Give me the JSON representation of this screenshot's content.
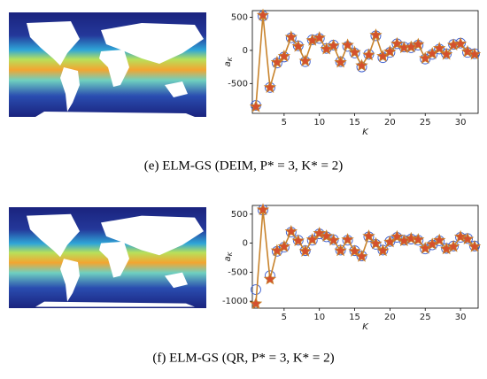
{
  "chart_data": [
    {
      "type": "line",
      "caption": "(e) ELM-GS (DEIM, P* = 3, K* = 2)",
      "xlabel": "K",
      "ylabel": "a",
      "ylabel_sub": "K",
      "x": [
        1,
        2,
        3,
        4,
        5,
        6,
        7,
        8,
        9,
        10,
        11,
        12,
        13,
        14,
        15,
        16,
        17,
        18,
        19,
        20,
        21,
        22,
        23,
        24,
        25,
        26,
        27,
        28,
        29,
        30,
        31,
        32
      ],
      "xlim": [
        0.5,
        32.5
      ],
      "xticks": [
        5,
        10,
        15,
        20,
        25,
        30
      ],
      "ylim": [
        -950,
        600
      ],
      "yticks": [
        500,
        0,
        -500
      ],
      "series": [
        {
          "color": "#3d5fd0",
          "marker": "circle",
          "line": false,
          "values": [
            -830,
            520,
            -560,
            -190,
            -100,
            190,
            70,
            -170,
            160,
            180,
            30,
            80,
            -170,
            60,
            -40,
            -250,
            -60,
            220,
            -110,
            -30,
            100,
            50,
            40,
            80,
            -130,
            -60,
            20,
            -50,
            90,
            110,
            -30,
            -50
          ]
        },
        {
          "color": "#c8832c",
          "marker": "star",
          "line": true,
          "values": [
            -850,
            530,
            -560,
            -180,
            -90,
            200,
            60,
            -160,
            150,
            190,
            20,
            70,
            -180,
            80,
            -30,
            -230,
            -70,
            230,
            -90,
            -20,
            100,
            40,
            50,
            90,
            -120,
            -50,
            30,
            -60,
            80,
            100,
            -20,
            -60
          ]
        }
      ]
    },
    {
      "type": "line",
      "caption": "(f) ELM-GS (QR, P* = 3, K* = 2)",
      "xlabel": "K",
      "ylabel": "a",
      "ylabel_sub": "K",
      "x": [
        1,
        2,
        3,
        4,
        5,
        6,
        7,
        8,
        9,
        10,
        11,
        12,
        13,
        14,
        15,
        16,
        17,
        18,
        19,
        20,
        21,
        22,
        23,
        24,
        25,
        26,
        27,
        28,
        29,
        30,
        31,
        32
      ],
      "xlim": [
        0.5,
        32.5
      ],
      "xticks": [
        5,
        10,
        15,
        20,
        25,
        30
      ],
      "ylim": [
        -1120,
        650
      ],
      "yticks": [
        500,
        0,
        -500,
        -1000
      ],
      "series": [
        {
          "color": "#3d5fd0",
          "marker": "circle",
          "line": false,
          "values": [
            -800,
            570,
            -560,
            -140,
            -70,
            190,
            50,
            -130,
            50,
            160,
            110,
            60,
            -120,
            50,
            -130,
            -220,
            110,
            -20,
            -120,
            30,
            100,
            50,
            70,
            50,
            -100,
            -30,
            40,
            -90,
            -50,
            100,
            80,
            -50
          ]
        },
        {
          "color": "#c8832c",
          "marker": "star",
          "line": true,
          "values": [
            -1045,
            575,
            -620,
            -130,
            -60,
            200,
            40,
            -140,
            60,
            170,
            120,
            50,
            -130,
            60,
            -140,
            -230,
            120,
            -10,
            -130,
            20,
            110,
            40,
            80,
            60,
            -90,
            -20,
            50,
            -100,
            -60,
            110,
            70,
            -60
          ]
        }
      ]
    }
  ]
}
